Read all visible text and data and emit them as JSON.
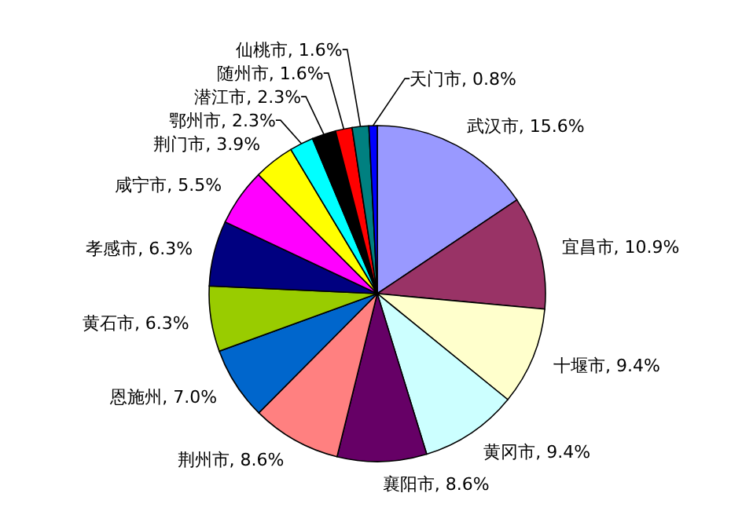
{
  "chart_data": {
    "type": "pie",
    "categories": [
      "武汉市",
      "宜昌市",
      "十堰市",
      "黄冈市",
      "襄阳市",
      "荆州市",
      "恩施州",
      "黄石市",
      "孝感市",
      "咸宁市",
      "荆门市",
      "鄂州市",
      "潜江市",
      "随州市",
      "仙桃市",
      "天门市"
    ],
    "values": [
      15.6,
      10.9,
      9.4,
      9.4,
      8.6,
      8.6,
      7.0,
      6.3,
      6.3,
      5.5,
      3.9,
      2.3,
      2.3,
      1.6,
      1.6,
      0.8
    ],
    "value_labels": [
      "15.6%",
      "10.9%",
      "9.4%",
      "9.4%",
      "8.6%",
      "8.6%",
      "7.0%",
      "6.3%",
      "6.3%",
      "5.5%",
      "3.9%",
      "2.3%",
      "2.3%",
      "1.6%",
      "1.6%",
      "0.8%"
    ],
    "colors": [
      "#9999ff",
      "#993366",
      "#ffffcc",
      "#ccffff",
      "#660066",
      "#ff8080",
      "#0066cc",
      "#99cc00",
      "#000080",
      "#ff00ff",
      "#ffff00",
      "#00ffff",
      "#000000",
      "#ff0000",
      "#008080",
      "#0000ff"
    ]
  }
}
